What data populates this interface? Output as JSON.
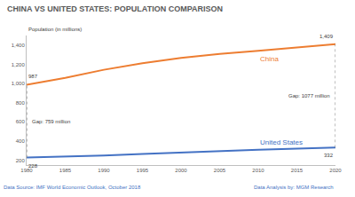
{
  "chart_data": {
    "type": "line",
    "title": "CHINA VS UNITED STATES: POPULATION COMPARISON",
    "y_label": "Population (in millions)",
    "x": [
      1980,
      1985,
      1990,
      1995,
      2000,
      2005,
      2010,
      2015,
      2020
    ],
    "series": [
      {
        "name": "China",
        "color": "#ed7d31",
        "line_style": "solid",
        "values": [
          987,
          1059,
          1143,
          1211,
          1267,
          1308,
          1341,
          1375,
          1409
        ],
        "value_labels": [
          "987",
          null,
          null,
          null,
          null,
          null,
          null,
          null,
          "1,409"
        ]
      },
      {
        "name": "United States",
        "color": "#4472c4",
        "line_style": "solid",
        "values": [
          228,
          238,
          250,
          266,
          282,
          296,
          309,
          321,
          332
        ],
        "value_labels": [
          "228",
          null,
          null,
          null,
          null,
          null,
          null,
          null,
          "332"
        ]
      }
    ],
    "annotations": [
      "Gap: 759 million",
      "Gap: 1077 million"
    ],
    "xlim": [
      1980,
      2020
    ],
    "xticks": [
      1980,
      1985,
      1990,
      1995,
      2000,
      2005,
      2010,
      2015,
      2020
    ],
    "ylim": [
      150,
      1500
    ],
    "yticks": [
      200,
      400,
      600,
      800,
      {
        "value": 1000,
        "label": "1,000"
      },
      {
        "value": 1200,
        "label": "1,200"
      },
      {
        "value": 1400,
        "label": "1,400"
      }
    ],
    "grid": false,
    "source": "Data Source: IMF World Economic Outlook, October 2018",
    "credit": "Data Analysis by: MGM Research"
  }
}
